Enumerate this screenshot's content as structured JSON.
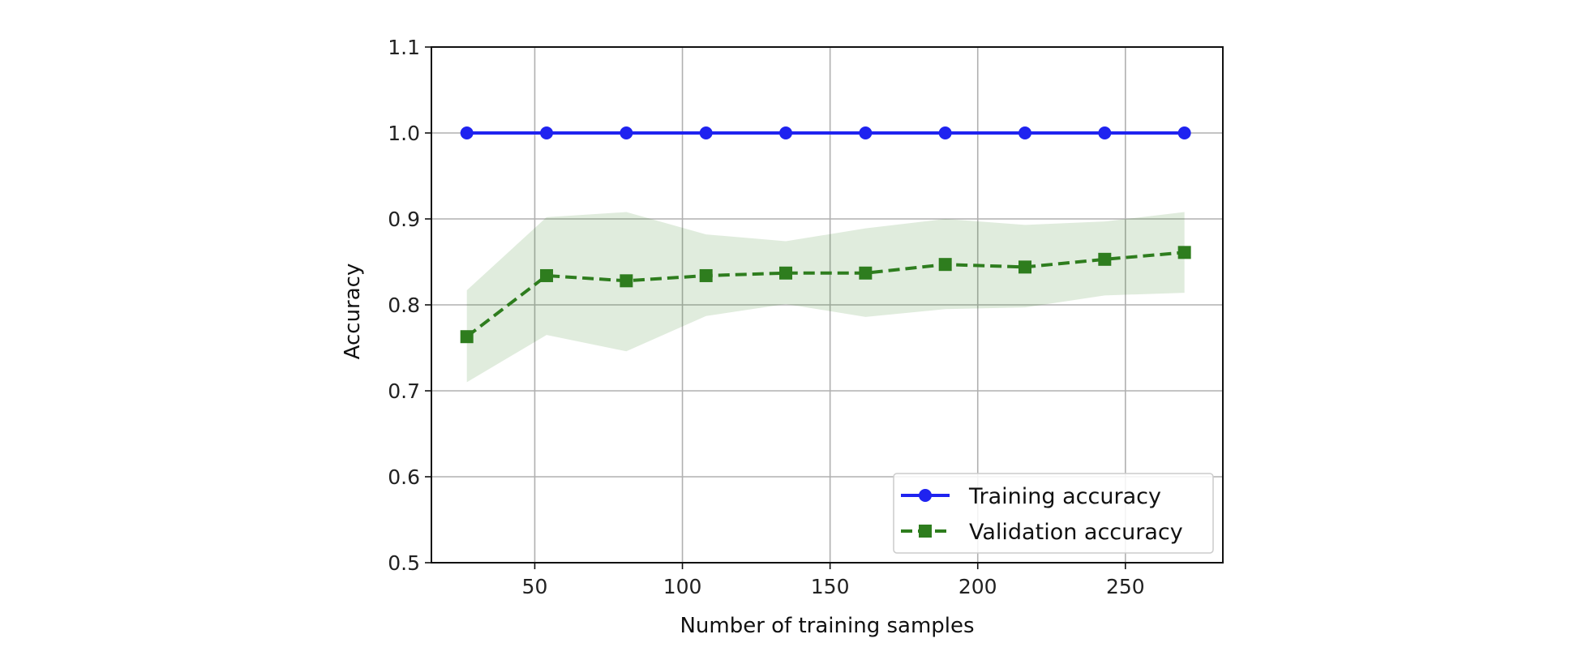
{
  "chart_data": {
    "type": "line",
    "xlabel": "Number of training samples",
    "ylabel": "Accuracy",
    "xlim": [
      15,
      283
    ],
    "ylim": [
      0.5,
      1.1
    ],
    "xticks": [
      50,
      100,
      150,
      200,
      250
    ],
    "yticks": [
      0.5,
      0.6,
      0.7,
      0.8,
      0.9,
      1.0,
      1.1
    ],
    "xtick_labels": [
      "50",
      "100",
      "150",
      "200",
      "250"
    ],
    "ytick_labels": [
      "0.5",
      "0.6",
      "0.7",
      "0.8",
      "0.9",
      "1.0",
      "1.1"
    ],
    "grid": true,
    "legend_position": "lower-right",
    "x": [
      27,
      54,
      81,
      108,
      135,
      162,
      189,
      216,
      243,
      270
    ],
    "series": [
      {
        "name": "Training accuracy",
        "color": "#1f23f0",
        "marker": "circle",
        "linestyle": "solid",
        "values": [
          1.0,
          1.0,
          1.0,
          1.0,
          1.0,
          1.0,
          1.0,
          1.0,
          1.0,
          1.0
        ],
        "band_upper": [
          1.0,
          1.0,
          1.0,
          1.0,
          1.0,
          1.0,
          1.0,
          1.0,
          1.0,
          1.0
        ],
        "band_lower": [
          1.0,
          1.0,
          1.0,
          1.0,
          1.0,
          1.0,
          1.0,
          1.0,
          1.0,
          1.0
        ]
      },
      {
        "name": "Validation accuracy",
        "color": "#2e7d1e",
        "marker": "square",
        "linestyle": "dashed",
        "band_color": "#2e7d1e",
        "values": [
          0.763,
          0.834,
          0.828,
          0.834,
          0.837,
          0.837,
          0.847,
          0.844,
          0.853,
          0.861
        ],
        "band_upper": [
          0.817,
          0.902,
          0.908,
          0.882,
          0.874,
          0.889,
          0.9,
          0.893,
          0.897,
          0.908
        ],
        "band_lower": [
          0.71,
          0.765,
          0.746,
          0.787,
          0.801,
          0.786,
          0.795,
          0.797,
          0.811,
          0.814
        ]
      }
    ]
  }
}
